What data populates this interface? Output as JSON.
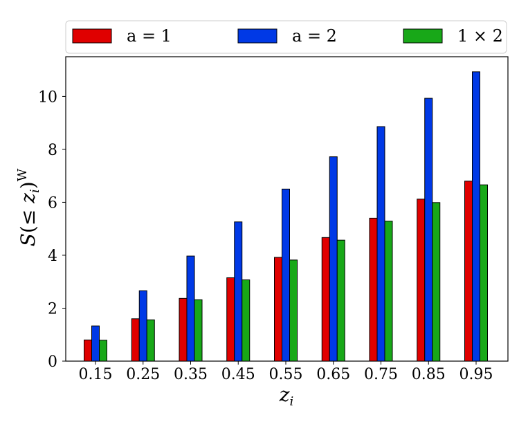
{
  "chart_data": {
    "type": "bar",
    "categories": [
      "0.15",
      "0.25",
      "0.35",
      "0.45",
      "0.55",
      "0.65",
      "0.75",
      "0.85",
      "0.95"
    ],
    "series": [
      {
        "name": "a = 1",
        "color": "#e00000",
        "values": [
          0.8,
          1.6,
          2.37,
          3.15,
          3.92,
          4.67,
          5.4,
          6.12,
          6.8
        ]
      },
      {
        "name": "a = 2",
        "color": "#0039e6",
        "values": [
          1.33,
          2.66,
          3.97,
          5.26,
          6.5,
          7.72,
          8.86,
          9.93,
          10.93
        ]
      },
      {
        "name": "1 × 2",
        "color": "#18a818",
        "values": [
          0.79,
          1.56,
          2.32,
          3.07,
          3.82,
          4.57,
          5.29,
          5.99,
          6.66
        ]
      }
    ],
    "xlabel": "z_i",
    "ylabel": "S(≤ z_i)^W",
    "ylim": [
      0,
      11.5
    ],
    "yticks": [
      "0",
      "2",
      "4",
      "6",
      "8",
      "10"
    ],
    "legend_position": "top",
    "grid": false
  }
}
